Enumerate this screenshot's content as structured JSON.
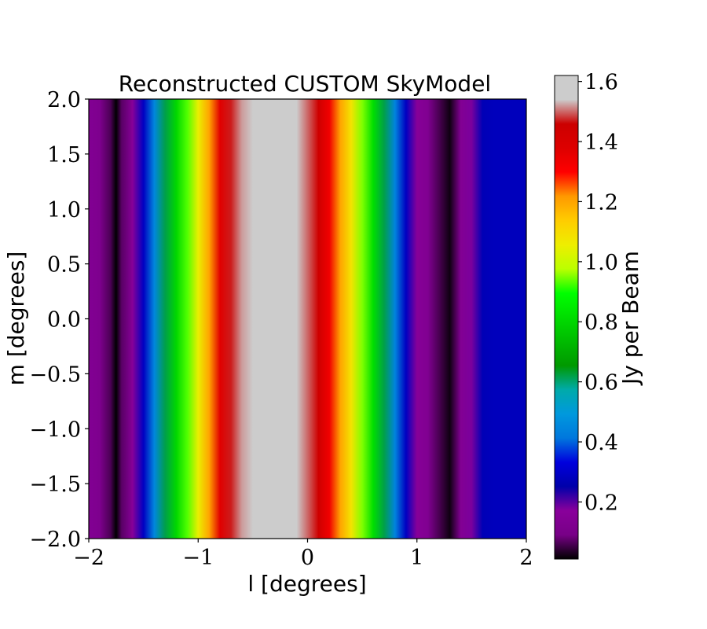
{
  "chart_data": {
    "type": "heatmap",
    "title": "Reconstructed CUSTOM SkyModel",
    "xlabel": "l [degrees]",
    "ylabel": "m [degrees]",
    "xlim": [
      -2,
      2
    ],
    "ylim": [
      -2,
      2
    ],
    "x_ticks": [
      -2,
      -1,
      0,
      1,
      2
    ],
    "x_tick_labels": [
      "−2",
      "−1",
      "0",
      "1",
      "2"
    ],
    "y_ticks": [
      2.0,
      1.5,
      1.0,
      0.5,
      0.0,
      -0.5,
      -1.0,
      -1.5,
      -2.0
    ],
    "y_tick_labels": [
      "2.0",
      "1.5",
      "1.0",
      "0.5",
      "0.0",
      "−0.5",
      "−1.0",
      "−1.5",
      "−2.0"
    ],
    "colorbar": {
      "label": "Jy per Beam",
      "colormap": "nipy_spectral",
      "vmin": 0.01,
      "vmax": 1.62,
      "ticks": [
        0.2,
        0.4,
        0.6,
        0.8,
        1.0,
        1.2,
        1.4,
        1.6
      ],
      "tick_labels": [
        "0.2",
        "0.4",
        "0.6",
        "0.8",
        "1.0",
        "1.2",
        "1.4",
        "1.6"
      ]
    },
    "profile_l": [
      -2.0,
      -1.9,
      -1.8,
      -1.75,
      -1.7,
      -1.6,
      -1.5,
      -1.4,
      -1.3,
      -1.2,
      -1.1,
      -1.0,
      -0.9,
      -0.8,
      -0.7,
      -0.6,
      -0.5,
      -0.4,
      -0.3,
      -0.2,
      -0.1,
      0.0,
      0.1,
      0.2,
      0.3,
      0.4,
      0.5,
      0.6,
      0.7,
      0.8,
      0.9,
      1.0,
      1.1,
      1.2,
      1.3,
      1.4,
      1.5,
      1.6,
      1.7,
      1.8,
      1.9,
      2.0
    ],
    "profile_values": [
      0.14,
      0.12,
      0.06,
      0.01,
      0.07,
      0.16,
      0.29,
      0.45,
      0.62,
      0.8,
      0.93,
      1.05,
      1.2,
      1.37,
      1.47,
      1.52,
      1.54,
      1.62,
      1.62,
      1.62,
      1.58,
      1.5,
      1.45,
      1.33,
      1.2,
      1.08,
      0.95,
      0.82,
      0.62,
      0.44,
      0.29,
      0.16,
      0.13,
      0.06,
      0.02,
      0.14,
      0.18,
      0.27,
      0.28,
      0.28,
      0.28,
      0.28
    ]
  }
}
